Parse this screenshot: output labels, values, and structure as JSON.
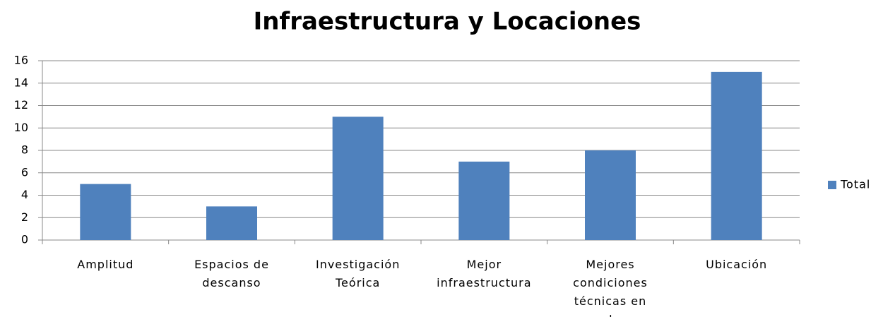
{
  "chart_data": {
    "type": "bar",
    "title": "Infraestructura y Locaciones",
    "categories": [
      "Amplitud",
      "Espacios de descanso",
      "Investigación Teórica",
      "Mejor infraestructura",
      "Mejores condiciones técnicas en aulas",
      "Ubicación"
    ],
    "series": [
      {
        "name": "Total",
        "color": "#4f81bd",
        "values": [
          5,
          3,
          11,
          7,
          8,
          15
        ]
      }
    ],
    "ylim": [
      0,
      16
    ],
    "yticks": [
      0,
      2,
      4,
      6,
      8,
      10,
      12,
      14,
      16
    ],
    "grid": true,
    "legend": "right"
  }
}
